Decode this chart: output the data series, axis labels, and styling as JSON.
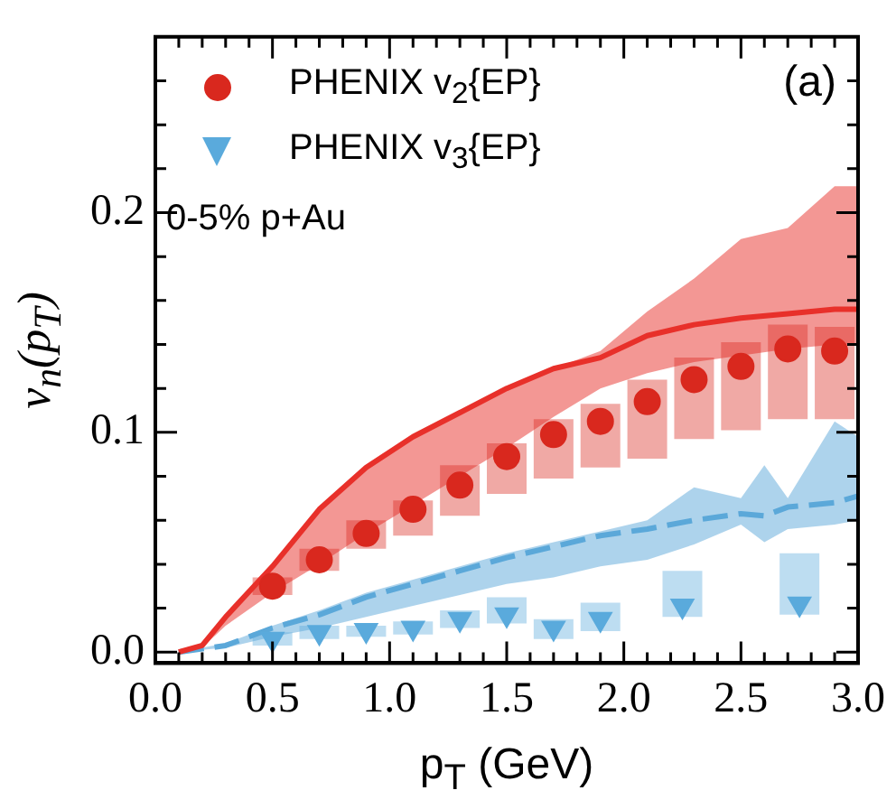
{
  "chart_data": {
    "type": "scatter",
    "xlabel": "p$_{T}$ (GeV)",
    "ylabel": "v$_{n}$(p$_{T}$)",
    "legend": "top left",
    "annotations": [
      "0-5% p+Au",
      "(a)"
    ],
    "xlim": [
      0,
      3.0
    ],
    "ylim": [
      -0.005,
      0.28
    ],
    "xticks": [
      {
        "value": 0,
        "label": "0.0"
      },
      {
        "value": 0.1,
        "label": null
      },
      {
        "value": 0.2,
        "label": null
      },
      {
        "value": 0.3,
        "label": null
      },
      {
        "value": 0.4,
        "label": null
      },
      {
        "value": 0.5,
        "label": "0.5"
      },
      {
        "value": 0.6,
        "label": null
      },
      {
        "value": 0.7,
        "label": null
      },
      {
        "value": 0.8,
        "label": null
      },
      {
        "value": 0.9,
        "label": null
      },
      {
        "value": 1.0,
        "label": "1.0"
      },
      {
        "value": 1.1,
        "label": null
      },
      {
        "value": 1.2,
        "label": null
      },
      {
        "value": 1.3,
        "label": null
      },
      {
        "value": 1.4,
        "label": null
      },
      {
        "value": 1.5,
        "label": "1.5"
      },
      {
        "value": 1.6,
        "label": null
      },
      {
        "value": 1.7,
        "label": null
      },
      {
        "value": 1.8,
        "label": null
      },
      {
        "value": 1.9,
        "label": null
      },
      {
        "value": 2.0,
        "label": "2.0"
      },
      {
        "value": 2.1,
        "label": null
      },
      {
        "value": 2.2,
        "label": null
      },
      {
        "value": 2.3,
        "label": null
      },
      {
        "value": 2.4,
        "label": null
      },
      {
        "value": 2.5,
        "label": "2.5"
      },
      {
        "value": 2.6,
        "label": null
      },
      {
        "value": 2.7,
        "label": null
      },
      {
        "value": 2.8,
        "label": null
      },
      {
        "value": 2.9,
        "label": null
      },
      {
        "value": 3.0,
        "label": "3.0"
      }
    ],
    "yticks": [
      {
        "value": 0,
        "label": "0.0"
      },
      {
        "value": 0.02,
        "label": null
      },
      {
        "value": 0.04,
        "label": null
      },
      {
        "value": 0.06,
        "label": null
      },
      {
        "value": 0.08,
        "label": null
      },
      {
        "value": 0.1,
        "label": "0.1"
      },
      {
        "value": 0.12,
        "label": null
      },
      {
        "value": 0.14,
        "label": null
      },
      {
        "value": 0.16,
        "label": null
      },
      {
        "value": 0.18,
        "label": null
      },
      {
        "value": 0.2,
        "label": "0.2"
      },
      {
        "value": 0.22,
        "label": null
      },
      {
        "value": 0.24,
        "label": null
      },
      {
        "value": 0.26,
        "label": null
      }
    ],
    "series": [
      {
        "type": "line",
        "color": "#e8302a",
        "line_style": "solid",
        "marker": "none",
        "x": [
          0.1,
          0.2,
          0.3,
          0.5,
          0.7,
          0.9,
          1.1,
          1.3,
          1.5,
          1.7,
          1.9,
          2.1,
          2.3,
          2.5,
          2.7,
          2.9,
          3.0
        ],
        "values": [
          0,
          0.003,
          0.016,
          0.039,
          0.065,
          0.084,
          0.098,
          0.109,
          0.12,
          0.129,
          0.134,
          0.144,
          0.149,
          0.152,
          0.154,
          0.156,
          0.156
        ],
        "lower": [
          0,
          0.002,
          0.012,
          0.027,
          0.04,
          0.054,
          0.067,
          0.08,
          0.093,
          0.107,
          0.12,
          0.127,
          0.132,
          0.135,
          0.138,
          0.14,
          0.14
        ],
        "upper": [
          0,
          0.003,
          0.016,
          0.039,
          0.065,
          0.084,
          0.098,
          0.109,
          0.12,
          0.129,
          0.137,
          0.155,
          0.17,
          0.188,
          0.193,
          0.212,
          0.212
        ]
      },
      {
        "type": "line",
        "color": "#5ba8d9",
        "line_style": "dashed",
        "marker": "none",
        "x": [
          0.1,
          0.3,
          0.5,
          0.7,
          0.9,
          1.1,
          1.3,
          1.5,
          1.7,
          1.9,
          2.1,
          2.3,
          2.5,
          2.6,
          2.7,
          2.9,
          3.0
        ],
        "values": [
          0,
          0.003,
          0.011,
          0.017,
          0.025,
          0.031,
          0.037,
          0.043,
          0.048,
          0.053,
          0.056,
          0.06,
          0.063,
          0.062,
          0.066,
          0.068,
          0.071
        ],
        "lower": [
          0,
          0.002,
          0.007,
          0.011,
          0.016,
          0.021,
          0.026,
          0.031,
          0.034,
          0.039,
          0.042,
          0.049,
          0.058,
          0.05,
          0.056,
          0.058,
          0.06
        ],
        "upper": [
          0,
          0.004,
          0.012,
          0.019,
          0.027,
          0.033,
          0.039,
          0.045,
          0.05,
          0.055,
          0.06,
          0.075,
          0.07,
          0.085,
          0.07,
          0.105,
          0.098
        ]
      },
      {
        "type": "scatter",
        "name": "PHENIX v$_{2}${EP}",
        "color": "#d9281e",
        "marker": "circle",
        "x": [
          0.5,
          0.7,
          0.9,
          1.1,
          1.3,
          1.5,
          1.7,
          1.9,
          2.1,
          2.3,
          2.5,
          2.7,
          2.9
        ],
        "values": [
          0.03,
          0.042,
          0.054,
          0.065,
          0.076,
          0.089,
          0.099,
          0.105,
          0.114,
          0.124,
          0.13,
          0.138,
          0.137
        ],
        "errors": [
          [
            0.026,
            0.034
          ],
          [
            0.037,
            0.047
          ],
          [
            0.047,
            0.06
          ],
          [
            0.053,
            0.069
          ],
          [
            0.062,
            0.085
          ],
          [
            0.072,
            0.095
          ],
          [
            0.079,
            0.106
          ],
          [
            0.084,
            0.113
          ],
          [
            0.088,
            0.124
          ],
          [
            0.097,
            0.134
          ],
          [
            0.101,
            0.141
          ],
          [
            0.106,
            0.149
          ],
          [
            0.106,
            0.148
          ]
        ]
      },
      {
        "type": "scatter",
        "name": "PHENIX v$_{3}${EP}",
        "color": "#5aaadc",
        "marker": "triangle",
        "x": [
          0.5,
          0.7,
          0.9,
          1.1,
          1.3,
          1.5,
          1.7,
          1.9,
          2.25,
          2.75
        ],
        "values": [
          0.006,
          0.009,
          0.01,
          0.011,
          0.015,
          0.017,
          0.011,
          0.015,
          0.021,
          0.022
        ],
        "errors": [
          [
            0.003,
            0.009
          ],
          [
            0.006,
            0.012
          ],
          [
            0.007,
            0.012
          ],
          [
            0.008,
            0.014
          ],
          [
            0.011,
            0.019
          ],
          [
            0.013,
            0.025
          ],
          [
            0.006,
            0.015
          ],
          [
            0.0095,
            0.0225
          ],
          [
            0.016,
            0.037
          ],
          [
            0.017,
            0.045
          ]
        ]
      }
    ]
  }
}
